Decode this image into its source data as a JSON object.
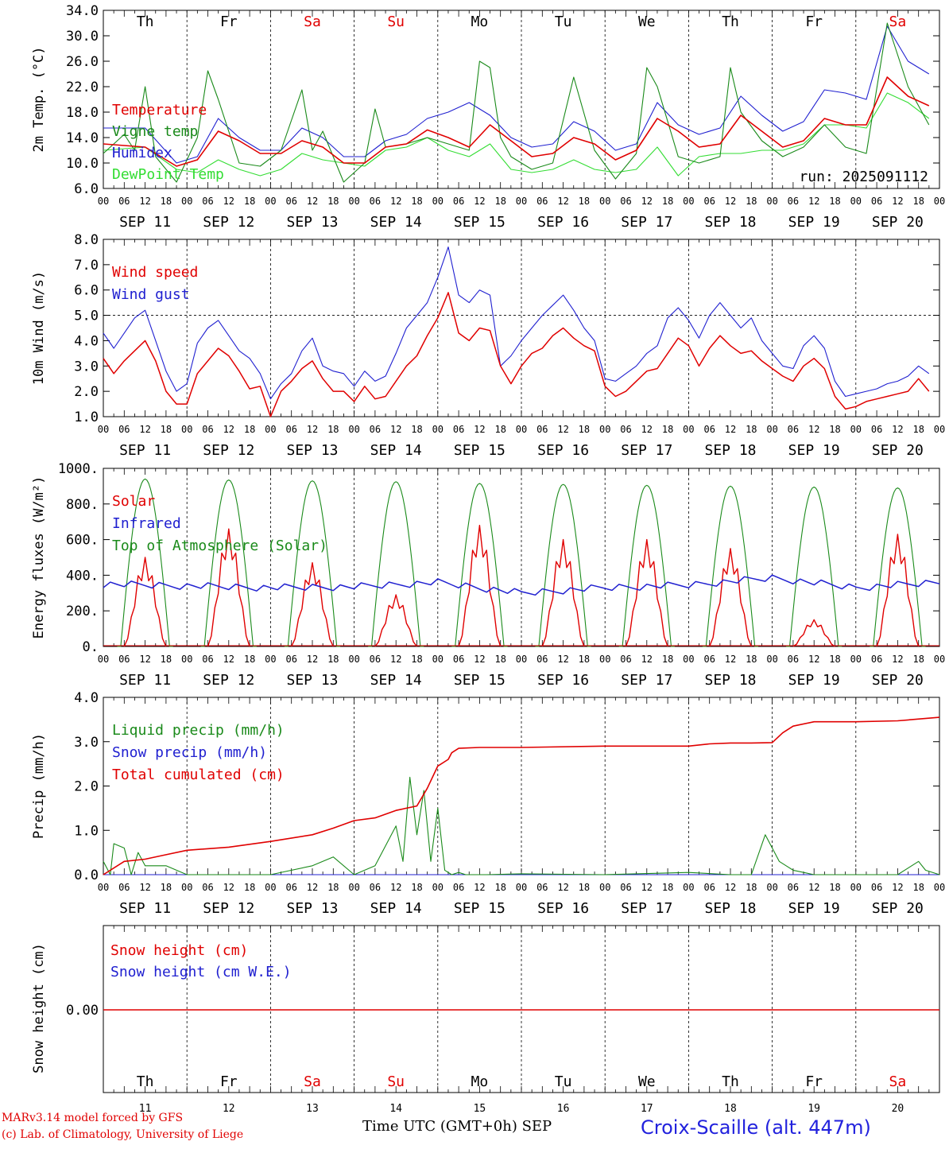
{
  "meteogram": {
    "days_abbr": [
      "Th",
      "Fr",
      "Sa",
      "Su",
      "Mo",
      "Tu",
      "We",
      "Th",
      "Fr",
      "Sa"
    ],
    "weekend_flags": [
      false,
      false,
      true,
      true,
      false,
      false,
      false,
      false,
      false,
      true
    ],
    "date_labels": [
      "SEP 11",
      "SEP 12",
      "SEP 13",
      "SEP 14",
      "SEP 15",
      "SEP 16",
      "SEP 17",
      "SEP 18",
      "SEP 19",
      "SEP 20"
    ],
    "hour_ticks": [
      "00",
      "06",
      "12",
      "18"
    ],
    "bottom_day_numbers": [
      "11",
      "12",
      "13",
      "14",
      "15",
      "16",
      "17",
      "18",
      "19",
      "20"
    ],
    "weekend_color": "#e00000",
    "footer_model": "MARv3.14 model forced by GFS",
    "footer_lab": "(c) Lab. of Climatology, University of Liege",
    "footer_xlabel": "Time UTC (GMT+0h) SEP",
    "footer_station": "Croix-Scaille (alt. 447m)"
  },
  "chart_data": [
    {
      "type": "line",
      "ylabel": "2m Temp. (°C)",
      "ylim": [
        6.0,
        34.0
      ],
      "yticks": [
        "6.0",
        "10.0",
        "14.0",
        "18.0",
        "22.0",
        "26.0",
        "30.0",
        "34.0"
      ],
      "annotation": "run: 2025091112",
      "x_unit": "hours since SEP 11 00 UTC",
      "series": [
        {
          "name": "Temperature",
          "color": "#e00000",
          "x": [
            0,
            12,
            21,
            27,
            33,
            39,
            45,
            51,
            57,
            63,
            69,
            75,
            81,
            87,
            93,
            99,
            105,
            111,
            117,
            123,
            129,
            135,
            141,
            147,
            153,
            159,
            165,
            171,
            177,
            183,
            189,
            195,
            201,
            207,
            213,
            219,
            225,
            231,
            237
          ],
          "y": [
            13.0,
            12.5,
            9.5,
            10.5,
            15.0,
            13.5,
            11.5,
            11.5,
            13.5,
            12.5,
            10.0,
            10.0,
            12.5,
            13.0,
            15.2,
            14.0,
            12.5,
            16.0,
            13.5,
            11.0,
            11.5,
            14.0,
            13.0,
            10.5,
            12.0,
            17.0,
            15.0,
            12.5,
            13.0,
            17.5,
            15.0,
            12.5,
            13.5,
            17.0,
            16.0,
            16.0,
            23.5,
            20.5,
            19.0
          ]
        },
        {
          "name": "Vigne temp",
          "color": "#1a8a1a",
          "x": [
            0,
            6,
            9,
            12,
            15,
            21,
            27,
            30,
            33,
            39,
            45,
            51,
            57,
            60,
            63,
            69,
            75,
            78,
            81,
            87,
            93,
            99,
            105,
            108,
            111,
            114,
            117,
            123,
            129,
            135,
            141,
            147,
            153,
            156,
            159,
            165,
            171,
            177,
            180,
            183,
            189,
            195,
            201,
            207,
            213,
            219,
            225,
            231,
            237
          ],
          "y": [
            11.5,
            14.5,
            12.0,
            22.0,
            11.0,
            7.0,
            14.0,
            24.5,
            20.0,
            10.0,
            9.5,
            12.0,
            21.5,
            12.0,
            15.0,
            7.0,
            10.0,
            18.5,
            12.5,
            13.0,
            14.0,
            13.0,
            12.0,
            26.0,
            25.0,
            14.0,
            11.0,
            9.0,
            10.0,
            23.5,
            12.0,
            7.5,
            11.5,
            25.0,
            22.0,
            11.0,
            10.0,
            11.0,
            25.0,
            18.0,
            13.5,
            11.0,
            12.5,
            16.0,
            12.5,
            11.5,
            32.0,
            22.0,
            16.0
          ]
        },
        {
          "name": "Humidex",
          "color": "#2020d0",
          "x": [
            0,
            12,
            21,
            27,
            33,
            39,
            45,
            51,
            57,
            63,
            69,
            75,
            81,
            87,
            93,
            99,
            105,
            111,
            117,
            123,
            129,
            135,
            141,
            147,
            153,
            159,
            165,
            171,
            177,
            183,
            189,
            195,
            201,
            207,
            213,
            219,
            225,
            231,
            237
          ],
          "y": [
            15.5,
            15.5,
            10.0,
            11.0,
            17.0,
            14.0,
            12.0,
            12.0,
            15.5,
            14.0,
            11.0,
            11.0,
            13.5,
            14.5,
            17.0,
            18.0,
            19.5,
            17.5,
            14.0,
            12.5,
            13.0,
            16.5,
            15.0,
            12.0,
            13.0,
            19.5,
            16.0,
            14.5,
            15.5,
            20.5,
            17.5,
            15.0,
            16.5,
            21.5,
            21.0,
            20.0,
            31.5,
            26.0,
            24.0
          ]
        },
        {
          "name": "DewPoint Temp",
          "color": "#33dd33",
          "x": [
            0,
            12,
            21,
            27,
            33,
            39,
            45,
            51,
            57,
            63,
            69,
            75,
            81,
            87,
            93,
            99,
            105,
            111,
            117,
            123,
            129,
            135,
            141,
            147,
            153,
            159,
            165,
            171,
            177,
            183,
            189,
            195,
            201,
            207,
            213,
            219,
            225,
            231,
            237
          ],
          "y": [
            12.0,
            12.5,
            9.0,
            8.5,
            10.5,
            9.0,
            8.0,
            9.0,
            11.5,
            10.5,
            10.0,
            9.5,
            12.0,
            12.5,
            14.0,
            12.0,
            11.0,
            13.0,
            9.0,
            8.5,
            9.0,
            10.5,
            9.0,
            8.5,
            9.0,
            12.5,
            8.0,
            11.0,
            11.5,
            11.5,
            12.0,
            12.0,
            13.0,
            16.0,
            16.0,
            15.5,
            21.0,
            19.5,
            17.0
          ]
        }
      ]
    },
    {
      "type": "line",
      "ylabel": "10m Wind (m/s)",
      "ylim": [
        1.0,
        8.0
      ],
      "yticks": [
        "1.0",
        "2.0",
        "3.0",
        "4.0",
        "5.0",
        "6.0",
        "7.0",
        "8.0"
      ],
      "reference_line": 5.0,
      "series": [
        {
          "name": "Wind speed",
          "color": "#e00000",
          "x": [
            0,
            3,
            6,
            9,
            12,
            15,
            18,
            21,
            24,
            27,
            30,
            33,
            36,
            39,
            42,
            45,
            48,
            51,
            54,
            57,
            60,
            63,
            66,
            69,
            72,
            75,
            78,
            81,
            84,
            87,
            90,
            93,
            96,
            99,
            102,
            105,
            108,
            111,
            114,
            117,
            120,
            123,
            126,
            129,
            132,
            135,
            138,
            141,
            144,
            147,
            150,
            153,
            156,
            159,
            162,
            165,
            168,
            171,
            174,
            177,
            180,
            183,
            186,
            189,
            192,
            195,
            198,
            201,
            204,
            207,
            210,
            213,
            216,
            219,
            222,
            225,
            228,
            231,
            234,
            237
          ],
          "y": [
            3.3,
            2.7,
            3.2,
            3.6,
            4.0,
            3.2,
            2.0,
            1.5,
            1.5,
            2.7,
            3.2,
            3.7,
            3.4,
            2.8,
            2.1,
            2.2,
            1.0,
            2.0,
            2.4,
            2.9,
            3.2,
            2.5,
            2.0,
            2.0,
            1.6,
            2.2,
            1.7,
            1.8,
            2.4,
            3.0,
            3.4,
            4.2,
            4.9,
            5.9,
            4.3,
            4.0,
            4.5,
            4.4,
            3.0,
            2.3,
            3.0,
            3.5,
            3.7,
            4.2,
            4.5,
            4.1,
            3.8,
            3.6,
            2.2,
            1.8,
            2.0,
            2.4,
            2.8,
            2.9,
            3.5,
            4.1,
            3.8,
            3.0,
            3.7,
            4.2,
            3.8,
            3.5,
            3.6,
            3.2,
            2.9,
            2.6,
            2.4,
            3.0,
            3.3,
            2.9,
            1.8,
            1.3,
            1.4,
            1.6,
            1.7,
            1.8,
            1.9,
            2.0,
            2.5,
            2.0
          ]
        },
        {
          "name": "Wind gust",
          "color": "#2020d0",
          "x": [
            0,
            3,
            6,
            9,
            12,
            15,
            18,
            21,
            24,
            27,
            30,
            33,
            36,
            39,
            42,
            45,
            48,
            51,
            54,
            57,
            60,
            63,
            66,
            69,
            72,
            75,
            78,
            81,
            84,
            87,
            90,
            93,
            96,
            99,
            102,
            105,
            108,
            111,
            114,
            117,
            120,
            123,
            126,
            129,
            132,
            135,
            138,
            141,
            144,
            147,
            150,
            153,
            156,
            159,
            162,
            165,
            168,
            171,
            174,
            177,
            180,
            183,
            186,
            189,
            192,
            195,
            198,
            201,
            204,
            207,
            210,
            213,
            216,
            219,
            222,
            225,
            228,
            231,
            234,
            237
          ],
          "y": [
            4.3,
            3.7,
            4.3,
            4.9,
            5.2,
            4.0,
            2.8,
            2.0,
            2.3,
            3.9,
            4.5,
            4.8,
            4.2,
            3.6,
            3.3,
            2.7,
            1.7,
            2.3,
            2.7,
            3.6,
            4.1,
            3.0,
            2.8,
            2.7,
            2.2,
            2.8,
            2.4,
            2.6,
            3.5,
            4.5,
            5.0,
            5.5,
            6.5,
            7.7,
            5.8,
            5.5,
            6.0,
            5.8,
            3.0,
            3.4,
            4.0,
            4.5,
            5.0,
            5.4,
            5.8,
            5.2,
            4.5,
            4.0,
            2.5,
            2.4,
            2.7,
            3.0,
            3.5,
            3.8,
            4.9,
            5.3,
            4.8,
            4.1,
            5.0,
            5.5,
            5.0,
            4.5,
            4.9,
            4.0,
            3.5,
            3.0,
            2.9,
            3.8,
            4.2,
            3.7,
            2.4,
            1.8,
            1.9,
            2.0,
            2.1,
            2.3,
            2.4,
            2.6,
            3.0,
            2.7
          ]
        }
      ]
    },
    {
      "type": "line",
      "ylabel": "Energy fluxes (W/m²)",
      "ylim": [
        0,
        1000
      ],
      "yticks": [
        "0.",
        "200.",
        "400.",
        "600.",
        "800.",
        "1000."
      ],
      "series": [
        {
          "name": "Solar",
          "color": "#e00000",
          "days_peak": [
            500,
            660,
            470,
            290,
            680,
            600,
            600,
            550,
            150,
            630
          ]
        },
        {
          "name": "Infrared",
          "color": "#2020d0",
          "x": [
            0,
            24,
            48,
            72,
            96,
            120,
            144,
            168,
            192,
            216,
            240
          ],
          "y": [
            350,
            340,
            330,
            335,
            360,
            300,
            330,
            345,
            385,
            330,
            360
          ]
        },
        {
          "name": "Top of Atmosphere (Solar)",
          "color": "#1a8a1a",
          "days_peak": [
            940,
            935,
            930,
            925,
            915,
            910,
            905,
            900,
            895,
            890
          ]
        }
      ]
    },
    {
      "type": "line",
      "ylabel": "Precip (mm/h)",
      "ylim": [
        0,
        4.0
      ],
      "yticks": [
        "0.0",
        "1.0",
        "2.0",
        "3.0",
        "4.0"
      ],
      "series": [
        {
          "name": "Liquid precip (mm/h)",
          "color": "#1a8a1a",
          "x": [
            0,
            2,
            3,
            6,
            8,
            10,
            12,
            18,
            24,
            36,
            48,
            60,
            66,
            72,
            78,
            84,
            86,
            88,
            90,
            92,
            94,
            96,
            98,
            100,
            102,
            104,
            110,
            120,
            144,
            168,
            180,
            186,
            190,
            194,
            196,
            198,
            204,
            228,
            234,
            236,
            240
          ],
          "y": [
            0.3,
            0.0,
            0.7,
            0.6,
            0.0,
            0.5,
            0.2,
            0.2,
            0.0,
            0.0,
            0.0,
            0.2,
            0.4,
            0.0,
            0.2,
            1.1,
            0.3,
            2.2,
            0.9,
            1.9,
            0.3,
            1.5,
            0.1,
            0.0,
            0.05,
            0.0,
            0.0,
            0.02,
            0.0,
            0.05,
            0.0,
            0.0,
            0.9,
            0.3,
            0.2,
            0.1,
            0.0,
            0.0,
            0.3,
            0.1,
            0.0
          ]
        },
        {
          "name": "Snow precip (mm/h)",
          "color": "#2020d0",
          "x": [
            0,
            240
          ],
          "y": [
            0,
            0
          ]
        },
        {
          "name": "Total cumulated (cm)",
          "color": "#e00000",
          "x": [
            0,
            6,
            12,
            18,
            24,
            36,
            48,
            60,
            66,
            72,
            78,
            84,
            90,
            93,
            96,
            99,
            100,
            102,
            108,
            120,
            144,
            168,
            174,
            180,
            186,
            192,
            195,
            198,
            204,
            216,
            228,
            240
          ],
          "y": [
            0.0,
            0.3,
            0.35,
            0.45,
            0.55,
            0.62,
            0.75,
            0.9,
            1.05,
            1.22,
            1.28,
            1.45,
            1.55,
            1.95,
            2.45,
            2.6,
            2.75,
            2.85,
            2.87,
            2.87,
            2.9,
            2.9,
            2.95,
            2.97,
            2.97,
            2.98,
            3.2,
            3.35,
            3.45,
            3.45,
            3.47,
            3.55
          ]
        }
      ]
    },
    {
      "type": "line",
      "ylabel": "Snow height (cm)",
      "yticks": [
        "0.00"
      ],
      "series": [
        {
          "name": "Snow height (cm)",
          "color": "#e00000",
          "x": [
            0,
            240
          ],
          "y": [
            0,
            0
          ]
        },
        {
          "name": "Snow height (cm W.E.)",
          "color": "#2020d0",
          "x": [
            0,
            240
          ],
          "y": [
            0,
            0
          ]
        }
      ]
    }
  ]
}
